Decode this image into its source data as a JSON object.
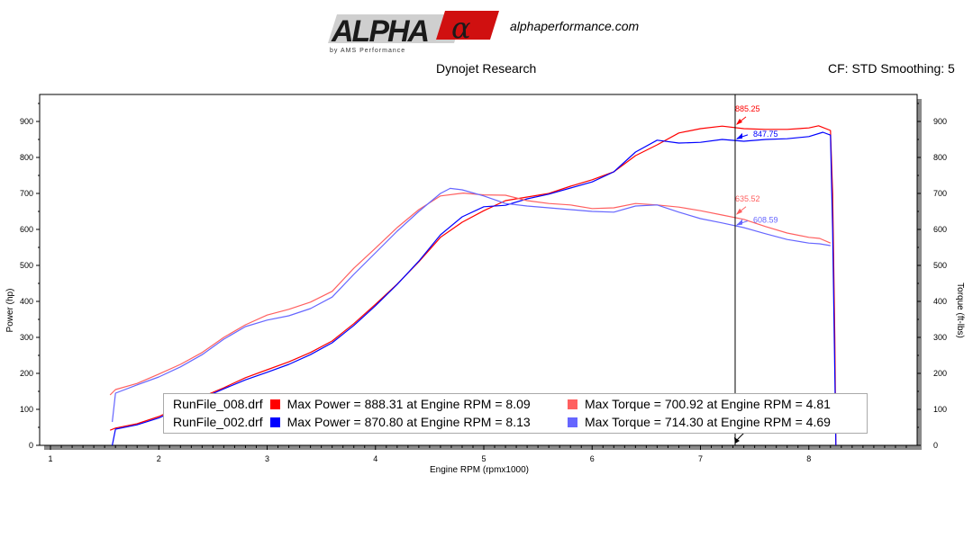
{
  "header": {
    "logo_main": "ALPHA",
    "logo_sub": "by AMS Performance",
    "site": "alphaperformance.com",
    "center": "Dynojet Research",
    "right": "CF: STD Smoothing: 5"
  },
  "colors": {
    "run008_power": "#ff0000",
    "run002_power": "#0000ff",
    "run008_torque": "#ff6060",
    "run002_torque": "#6666ff"
  },
  "chart_data": {
    "type": "line",
    "xlabel": "Engine RPM (rpmx1000)",
    "ylabel_left": "Power (hp)",
    "ylabel_right": "Torque (ft-lbs)",
    "xlim": [
      0.9,
      9.0
    ],
    "ylim": [
      0,
      975
    ],
    "x_ticks": [
      "1",
      "2",
      "3",
      "4",
      "5",
      "6",
      "7",
      "8"
    ],
    "y_ticks": [
      "0",
      "100",
      "200",
      "300",
      "400",
      "500",
      "600",
      "700",
      "800",
      "900"
    ],
    "cursor_rpm": 7.32,
    "series": [
      {
        "name": "RunFile_008.drf",
        "quantity": "power",
        "color": "#ff0000",
        "x": [
          1.55,
          1.6,
          1.8,
          2.0,
          2.2,
          2.4,
          2.6,
          2.8,
          3.0,
          3.2,
          3.4,
          3.6,
          3.8,
          4.0,
          4.2,
          4.4,
          4.6,
          4.8,
          5.0,
          5.2,
          5.4,
          5.6,
          5.8,
          6.0,
          6.2,
          6.4,
          6.6,
          6.8,
          7.0,
          7.2,
          7.4,
          7.6,
          7.8,
          8.0,
          8.09,
          8.2,
          8.22,
          8.24,
          8.25
        ],
        "y": [
          42,
          48,
          60,
          80,
          108,
          135,
          160,
          188,
          210,
          232,
          258,
          290,
          338,
          392,
          448,
          510,
          578,
          620,
          652,
          680,
          690,
          700,
          720,
          738,
          760,
          805,
          835,
          868,
          880,
          887,
          880,
          878,
          878,
          882,
          888,
          875,
          700,
          300,
          0
        ]
      },
      {
        "name": "RunFile_002.drf",
        "quantity": "power",
        "color": "#0000ff",
        "x": [
          1.57,
          1.6,
          1.8,
          2.0,
          2.2,
          2.4,
          2.6,
          2.8,
          3.0,
          3.2,
          3.4,
          3.6,
          3.8,
          4.0,
          4.2,
          4.4,
          4.6,
          4.8,
          5.0,
          5.2,
          5.4,
          5.6,
          5.8,
          6.0,
          6.2,
          6.4,
          6.6,
          6.8,
          7.0,
          7.2,
          7.4,
          7.6,
          7.8,
          8.0,
          8.13,
          8.2,
          8.22,
          8.24,
          8.25
        ],
        "y": [
          0,
          45,
          57,
          76,
          104,
          131,
          157,
          182,
          203,
          225,
          252,
          285,
          333,
          388,
          447,
          512,
          585,
          635,
          663,
          667,
          685,
          698,
          715,
          732,
          760,
          815,
          848,
          840,
          842,
          850,
          845,
          850,
          852,
          858,
          870,
          862,
          600,
          200,
          0
        ]
      },
      {
        "name": "RunFile_008.drf",
        "quantity": "torque",
        "color": "#ff6060",
        "x": [
          1.55,
          1.6,
          1.8,
          2.0,
          2.2,
          2.4,
          2.6,
          2.8,
          3.0,
          3.2,
          3.4,
          3.6,
          3.8,
          4.0,
          4.2,
          4.4,
          4.6,
          4.81,
          5.0,
          5.2,
          5.4,
          5.6,
          5.8,
          6.0,
          6.2,
          6.4,
          6.6,
          6.8,
          7.0,
          7.2,
          7.4,
          7.6,
          7.8,
          8.0,
          8.1,
          8.2
        ],
        "y": [
          140,
          155,
          172,
          198,
          225,
          258,
          300,
          335,
          362,
          378,
          398,
          428,
          492,
          548,
          605,
          655,
          693,
          701,
          696,
          695,
          680,
          672,
          668,
          658,
          660,
          672,
          668,
          662,
          652,
          640,
          628,
          608,
          590,
          578,
          575,
          562
        ]
      },
      {
        "name": "RunFile_002.drf",
        "quantity": "torque",
        "color": "#6666ff",
        "x": [
          1.57,
          1.6,
          1.8,
          2.0,
          2.2,
          2.4,
          2.6,
          2.8,
          3.0,
          3.2,
          3.4,
          3.6,
          3.8,
          4.0,
          4.2,
          4.4,
          4.6,
          4.69,
          4.8,
          5.0,
          5.2,
          5.4,
          5.6,
          5.8,
          6.0,
          6.2,
          6.4,
          6.6,
          6.8,
          7.0,
          7.2,
          7.4,
          7.6,
          7.8,
          8.0,
          8.1,
          8.2
        ],
        "y": [
          65,
          145,
          168,
          190,
          218,
          252,
          295,
          330,
          348,
          360,
          380,
          412,
          475,
          535,
          595,
          650,
          700,
          714,
          710,
          693,
          672,
          665,
          660,
          655,
          650,
          648,
          665,
          668,
          648,
          630,
          618,
          605,
          588,
          572,
          562,
          560,
          555
        ]
      }
    ],
    "annotations": [
      {
        "label": "885.25",
        "x": 7.32,
        "y": 885.25,
        "color": "#ff0000",
        "side": "above"
      },
      {
        "label": "847.75",
        "x": 7.32,
        "y": 847.75,
        "color": "#0000ff",
        "side": "right"
      },
      {
        "label": "635.52",
        "x": 7.32,
        "y": 635.52,
        "color": "#ff6060",
        "side": "above"
      },
      {
        "label": "608.59",
        "x": 7.32,
        "y": 608.59,
        "color": "#6666ff",
        "side": "right"
      }
    ],
    "legend": [
      {
        "file": "RunFile_008.drf",
        "power_color": "#ff0000",
        "power_text": "Max Power = 888.31 at Engine RPM = 8.09",
        "torque_color": "#ff6060",
        "torque_text": "Max Torque = 700.92 at Engine RPM = 4.81"
      },
      {
        "file": "RunFile_002.drf",
        "power_color": "#0000ff",
        "power_text": "Max Power = 870.80 at Engine RPM = 8.13",
        "torque_color": "#6666ff",
        "torque_text": "Max Torque = 714.30 at Engine RPM = 4.69"
      }
    ]
  }
}
